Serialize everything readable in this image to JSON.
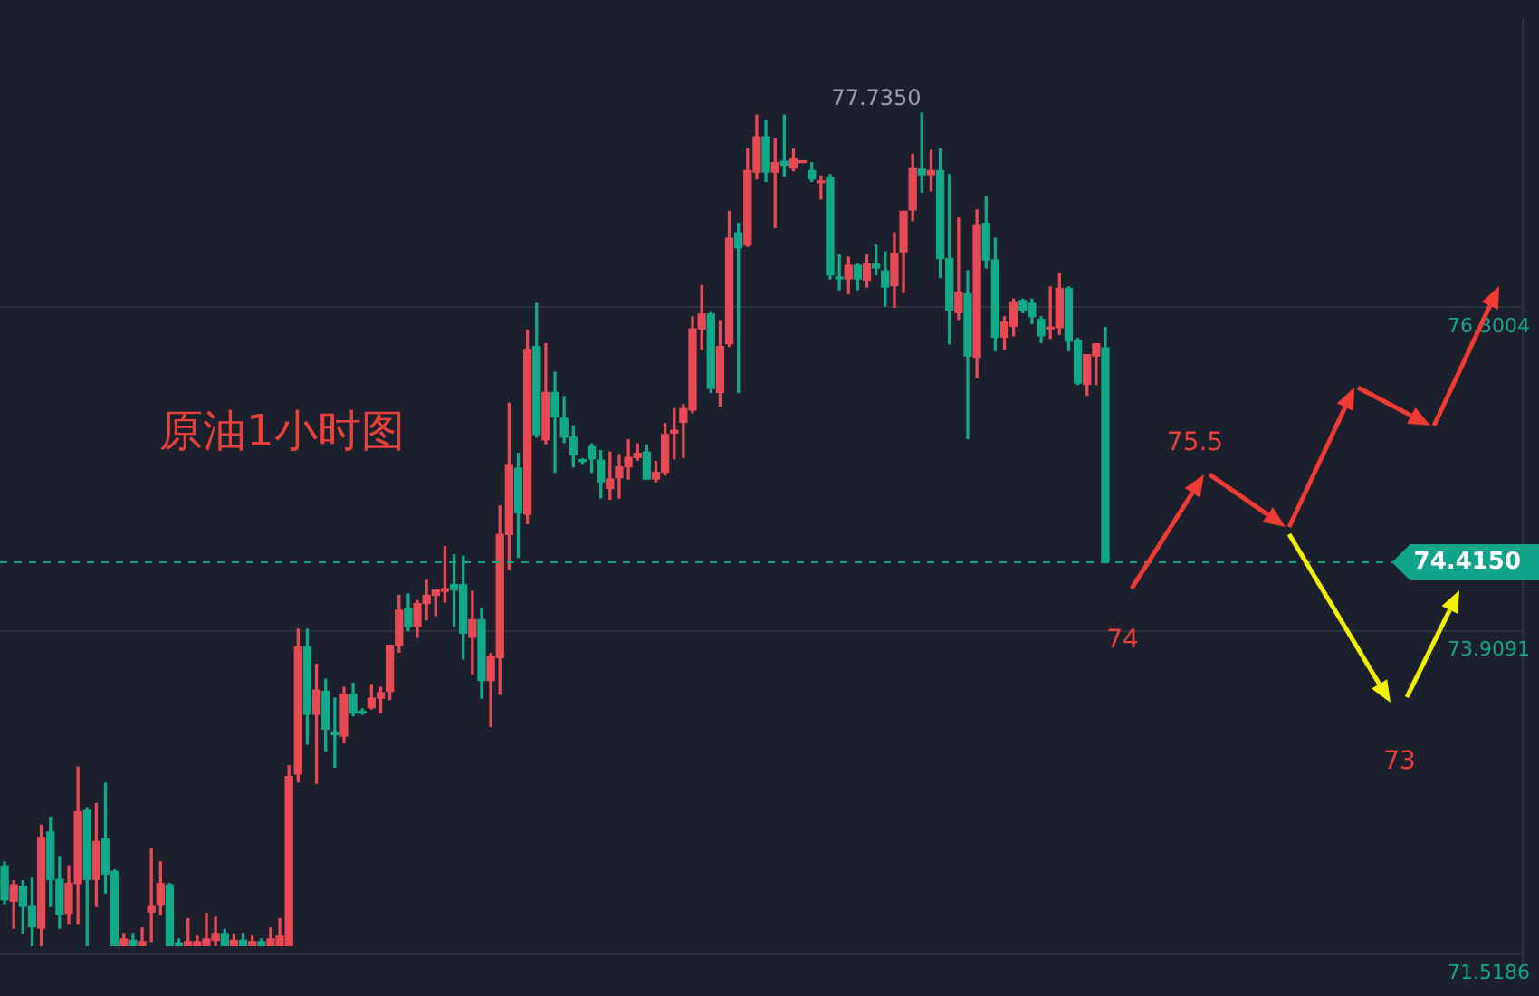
{
  "chart_data": {
    "type": "candlestick",
    "title": "原油1小时图",
    "categories": [
      null,
      null,
      null,
      null,
      null,
      null,
      null,
      null,
      null,
      null,
      null,
      null,
      null,
      null,
      null,
      null,
      null,
      null,
      null,
      null,
      null,
      null,
      null,
      null,
      null,
      null,
      null,
      null,
      null,
      null,
      null,
      null,
      null,
      null,
      null,
      null,
      null,
      null,
      null,
      null,
      null,
      null,
      null,
      null,
      null,
      null,
      null,
      null,
      null,
      null,
      null,
      null,
      null,
      null,
      null,
      null,
      null,
      null,
      null,
      null,
      null,
      null,
      null,
      null,
      null,
      null,
      null,
      null,
      null,
      null,
      null,
      null,
      null,
      null,
      null,
      null,
      null,
      null,
      null,
      null,
      null,
      null,
      null,
      null,
      null,
      null,
      null,
      null,
      null,
      null,
      null,
      null,
      null,
      null,
      null,
      null,
      null,
      null,
      null,
      null,
      null,
      null,
      null,
      null,
      null,
      null,
      null,
      null,
      null,
      null,
      null,
      null,
      null,
      null,
      null,
      null,
      null,
      null,
      null,
      null,
      null,
      null,
      null,
      null,
      null,
      null,
      null,
      null,
      null,
      null,
      null,
      null,
      null,
      null,
      null,
      null,
      null,
      null,
      null,
      null,
      null,
      null,
      null,
      null,
      null,
      null,
      null,
      null,
      null,
      null,
      null,
      null,
      null,
      null,
      null,
      null,
      null,
      null,
      null,
      null,
      null,
      null,
      null,
      null,
      null,
      null
    ],
    "ohlc": [
      [
        72.17,
        72.2,
        71.89,
        71.92
      ],
      [
        71.91,
        72.06,
        71.71,
        72.03
      ],
      [
        72.02,
        72.06,
        71.67,
        71.87
      ],
      [
        71.87,
        72.08,
        71.58,
        71.72
      ],
      [
        71.71,
        72.47,
        71.58,
        72.38
      ],
      [
        72.42,
        72.53,
        71.87,
        72.07
      ],
      [
        72.07,
        72.24,
        71.71,
        71.81
      ],
      [
        71.82,
        72.17,
        71.74,
        72.04
      ],
      [
        72.04,
        72.9,
        71.74,
        72.57
      ],
      [
        72.58,
        72.6,
        71.58,
        72.07
      ],
      [
        72.07,
        72.63,
        71.87,
        72.35
      ],
      [
        72.37,
        72.78,
        71.97,
        72.11
      ],
      [
        72.13,
        72.14,
        71.58,
        71.58
      ],
      [
        71.58,
        71.67,
        71.58,
        71.63
      ],
      [
        71.62,
        71.67,
        71.58,
        71.58
      ],
      [
        71.58,
        71.71,
        71.58,
        71.61
      ],
      [
        71.83,
        72.3,
        71.61,
        71.87
      ],
      [
        71.88,
        72.2,
        71.81,
        72.04
      ],
      [
        72.03,
        72.04,
        71.58,
        71.58
      ],
      [
        71.6,
        71.63,
        71.58,
        71.58
      ],
      [
        71.58,
        71.78,
        71.58,
        71.61
      ],
      [
        71.58,
        71.65,
        71.58,
        71.61
      ],
      [
        71.58,
        71.82,
        71.58,
        71.63
      ],
      [
        71.62,
        71.79,
        71.58,
        71.67
      ],
      [
        71.67,
        71.7,
        71.58,
        71.58
      ],
      [
        71.58,
        71.66,
        71.58,
        71.62
      ],
      [
        71.62,
        71.67,
        71.58,
        71.58
      ],
      [
        71.58,
        71.65,
        71.58,
        71.61
      ],
      [
        71.61,
        71.63,
        71.58,
        71.58
      ],
      [
        71.58,
        71.71,
        71.58,
        71.63
      ],
      [
        71.58,
        71.78,
        71.58,
        71.65
      ],
      [
        71.58,
        72.91,
        71.58,
        72.83
      ],
      [
        72.85,
        73.92,
        72.79,
        73.79
      ],
      [
        73.79,
        73.92,
        73.07,
        73.29
      ],
      [
        73.29,
        73.66,
        72.78,
        73.47
      ],
      [
        73.46,
        73.55,
        73.02,
        73.18
      ],
      [
        73.16,
        73.41,
        72.9,
        73.14
      ],
      [
        73.13,
        73.49,
        73.08,
        73.44
      ],
      [
        73.44,
        73.52,
        73.28,
        73.3
      ],
      [
        73.31,
        73.33,
        73.29,
        73.3
      ],
      [
        73.34,
        73.51,
        73.33,
        73.41
      ],
      [
        73.41,
        73.49,
        73.3,
        73.45
      ],
      [
        73.46,
        73.8,
        73.4,
        73.8
      ],
      [
        73.8,
        74.17,
        73.75,
        74.06
      ],
      [
        74.07,
        74.18,
        73.91,
        73.94
      ],
      [
        73.94,
        74.13,
        73.86,
        74.11
      ],
      [
        74.11,
        74.28,
        73.99,
        74.17
      ],
      [
        74.17,
        74.21,
        74.02,
        74.21
      ],
      [
        74.2,
        74.53,
        74.12,
        74.22
      ],
      [
        74.25,
        74.47,
        73.94,
        74.21
      ],
      [
        74.25,
        74.46,
        73.7,
        73.89
      ],
      [
        73.86,
        74.2,
        73.59,
        73.99
      ],
      [
        73.99,
        74.07,
        73.41,
        73.54
      ],
      [
        73.54,
        73.74,
        73.2,
        73.72
      ],
      [
        73.71,
        74.83,
        73.44,
        74.62
      ],
      [
        74.62,
        75.59,
        74.36,
        75.13
      ],
      [
        75.11,
        75.22,
        74.45,
        74.78
      ],
      [
        74.77,
        76.13,
        74.7,
        75.99
      ],
      [
        76.01,
        76.33,
        75.34,
        75.36
      ],
      [
        75.32,
        76.03,
        75.29,
        75.67
      ],
      [
        75.67,
        75.82,
        75.08,
        75.49
      ],
      [
        75.48,
        75.64,
        75.3,
        75.34
      ],
      [
        75.34,
        75.42,
        75.12,
        75.21
      ],
      [
        75.17,
        75.18,
        75.14,
        75.16
      ],
      [
        75.27,
        75.29,
        75.08,
        75.18
      ],
      [
        75.17,
        75.24,
        74.89,
        75.01
      ],
      [
        74.96,
        75.23,
        74.88,
        75.03
      ],
      [
        75.04,
        75.21,
        74.89,
        75.12
      ],
      [
        75.12,
        75.32,
        75.03,
        75.19
      ],
      [
        75.19,
        75.29,
        75.17,
        75.22
      ],
      [
        75.23,
        75.28,
        75.03,
        75.03
      ],
      [
        75.03,
        75.16,
        75.01,
        75.08
      ],
      [
        75.08,
        75.44,
        75.06,
        75.36
      ],
      [
        75.37,
        75.55,
        75.18,
        75.39
      ],
      [
        75.45,
        75.58,
        75.19,
        75.55
      ],
      [
        75.54,
        76.23,
        75.52,
        76.14
      ],
      [
        76.14,
        76.46,
        75.99,
        76.25
      ],
      [
        76.25,
        76.26,
        75.67,
        75.7
      ],
      [
        75.67,
        76.2,
        75.57,
        76.01
      ],
      [
        76.03,
        77.01,
        76.01,
        76.81
      ],
      [
        76.85,
        76.92,
        75.67,
        76.74
      ],
      [
        76.76,
        77.47,
        76.75,
        77.31
      ],
      [
        77.3,
        77.72,
        77.25,
        77.56
      ],
      [
        77.56,
        77.68,
        77.23,
        77.3
      ],
      [
        77.3,
        77.55,
        76.89,
        77.37
      ],
      [
        77.38,
        77.72,
        77.27,
        77.35
      ],
      [
        77.33,
        77.47,
        77.31,
        77.4
      ],
      [
        77.37,
        77.38,
        77.37,
        77.38
      ],
      [
        77.31,
        77.37,
        77.23,
        77.25
      ],
      [
        77.22,
        77.27,
        77.1,
        77.23
      ],
      [
        77.26,
        77.28,
        76.51,
        76.54
      ],
      [
        76.52,
        76.69,
        76.43,
        76.51
      ],
      [
        76.51,
        76.67,
        76.4,
        76.61
      ],
      [
        76.61,
        76.62,
        76.43,
        76.51
      ],
      [
        76.5,
        76.69,
        76.45,
        76.62
      ],
      [
        76.62,
        76.76,
        76.54,
        76.59
      ],
      [
        76.57,
        76.71,
        76.31,
        76.45
      ],
      [
        76.46,
        76.85,
        76.3,
        76.7
      ],
      [
        76.71,
        77.01,
        76.41,
        77.01
      ],
      [
        77.02,
        77.43,
        76.94,
        77.33
      ],
      [
        77.32,
        77.735,
        77.15,
        77.28
      ],
      [
        77.28,
        77.46,
        77.16,
        77.31
      ],
      [
        77.31,
        77.47,
        76.52,
        76.66
      ],
      [
        76.66,
        77.28,
        76.03,
        76.28
      ],
      [
        76.26,
        76.96,
        76.21,
        76.41
      ],
      [
        76.4,
        76.57,
        75.33,
        75.94
      ],
      [
        75.93,
        77.02,
        75.78,
        76.91
      ],
      [
        76.92,
        77.12,
        76.59,
        76.65
      ],
      [
        76.65,
        76.81,
        75.98,
        76.08
      ],
      [
        76.08,
        76.23,
        75.99,
        76.19
      ],
      [
        76.16,
        76.36,
        76.09,
        76.34
      ],
      [
        76.35,
        76.36,
        76.26,
        76.28
      ],
      [
        76.33,
        76.36,
        76.18,
        76.23
      ],
      [
        76.21,
        76.23,
        76.04,
        76.09
      ],
      [
        76.14,
        76.45,
        76.07,
        76.15
      ],
      [
        76.15,
        76.55,
        76.1,
        76.44
      ],
      [
        76.44,
        76.45,
        75.98,
        76.05
      ],
      [
        76.05,
        76.07,
        75.73,
        75.74
      ],
      [
        75.73,
        75.95,
        75.65,
        75.95
      ],
      [
        75.94,
        76.03,
        75.73,
        76.03
      ],
      [
        76.0,
        76.15,
        74.41,
        74.415
      ],
      null,
      null,
      null,
      null,
      null,
      null,
      null,
      null,
      null,
      null,
      null,
      null,
      null,
      null,
      null,
      null,
      null,
      null,
      null,
      null,
      null,
      null,
      null,
      null,
      null,
      null,
      null,
      null,
      null,
      null,
      null,
      null,
      null,
      null,
      null,
      null,
      null,
      null,
      null,
      null,
      null,
      null,
      null,
      null,
      null
    ],
    "colors": [
      "#12a98b",
      "#e84a55",
      "#12a98b",
      "#12a98b",
      "#e84a55",
      "#12a98b",
      "#12a98b",
      "#e84a55",
      "#e84a55",
      "#12a98b",
      "#e84a55",
      "#12a98b",
      "#12a98b",
      "#e84a55",
      "#12a98b",
      "#e84a55",
      "#e84a55",
      "#e84a55",
      "#12a98b",
      "#12a98b",
      "#e84a55",
      "#e84a55",
      "#e84a55",
      "#e84a55",
      "#12a98b",
      "#e84a55",
      "#12a98b",
      "#e84a55",
      "#12a98b",
      "#e84a55",
      "#e84a55",
      "#e84a55",
      "#e84a55",
      "#12a98b",
      "#e84a55",
      "#12a98b",
      "#12a98b",
      "#e84a55",
      "#12a98b",
      "#12a98b",
      "#e84a55",
      "#e84a55",
      "#e84a55",
      "#e84a55",
      "#12a98b",
      "#e84a55",
      "#e84a55",
      "#e84a55",
      "#e84a55",
      "#12a98b",
      "#12a98b",
      "#e84a55",
      "#12a98b",
      "#e84a55",
      "#e84a55",
      "#e84a55",
      "#12a98b",
      "#e84a55",
      "#12a98b",
      "#e84a55",
      "#12a98b",
      "#12a98b",
      "#12a98b",
      "#12a98b",
      "#12a98b",
      "#12a98b",
      "#e84a55",
      "#e84a55",
      "#e84a55",
      "#e84a55",
      "#12a98b",
      "#e84a55",
      "#e84a55",
      "#e84a55",
      "#e84a55",
      "#e84a55",
      "#e84a55",
      "#12a98b",
      "#e84a55",
      "#e84a55",
      "#12a98b",
      "#e84a55",
      "#e84a55",
      "#12a98b",
      "#e84a55",
      "#12a98b",
      "#e84a55",
      "#e84a55",
      "#12a98b",
      "#e84a55",
      "#12a98b",
      "#12a98b",
      "#e84a55",
      "#12a98b",
      "#e84a55",
      "#12a98b",
      "#12a98b",
      "#e84a55",
      "#e84a55",
      "#e84a55",
      "#12a98b",
      "#e84a55",
      "#12a98b",
      "#12a98b",
      "#e84a55",
      "#12a98b",
      "#e84a55",
      "#12a98b",
      "#12a98b",
      "#e84a55",
      "#e84a55",
      "#12a98b",
      "#12a98b",
      "#12a98b",
      "#e84a55",
      "#e84a55",
      "#12a98b",
      "#12a98b",
      "#e84a55",
      "#e84a55",
      "#12a98b",
      null,
      null,
      null,
      null,
      null,
      null,
      null,
      null,
      null,
      null,
      null,
      null,
      null,
      null,
      null,
      null,
      null,
      null,
      null,
      null,
      null,
      null,
      null,
      null,
      null,
      null,
      null,
      null,
      null,
      null,
      null,
      null,
      null,
      null,
      null,
      null,
      null,
      null,
      null,
      null,
      null,
      null,
      null,
      null,
      null
    ],
    "ylim": [
      71.35,
      78.43
    ],
    "yticks": [
      71.5186,
      73.9091,
      76.3004
    ],
    "tick_labels": "y",
    "grid": "y",
    "ref_lines": [
      {
        "axis": "y",
        "value": 74.415,
        "label": "74.4150",
        "color": "#10a58a",
        "line_style": "dashed"
      }
    ],
    "annotations": [
      "77.7350",
      "75.5",
      "74",
      "73"
    ]
  }
}
